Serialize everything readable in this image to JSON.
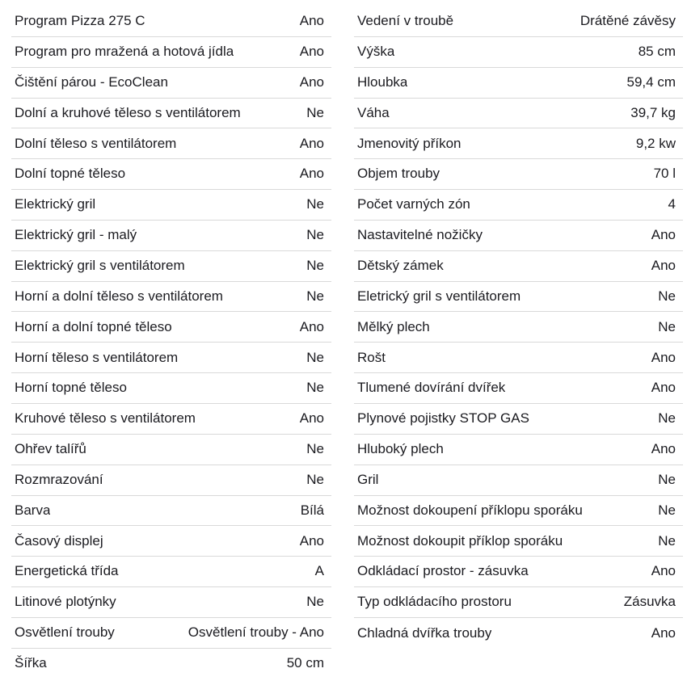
{
  "theme": {
    "text_color": "#1b1b20",
    "divider_color": "#d9d9d9",
    "background_color": "#ffffff"
  },
  "spec_table": {
    "left_column": [
      {
        "label": "Program Pizza 275 C",
        "value": "Ano"
      },
      {
        "label": "Program pro mražená a hotová jídla",
        "value": "Ano"
      },
      {
        "label": "Čištění párou - EcoClean",
        "value": "Ano"
      },
      {
        "label": "Dolní a kruhové těleso s ventilátorem",
        "value": "Ne"
      },
      {
        "label": "Dolní těleso s ventilátorem",
        "value": "Ano"
      },
      {
        "label": "Dolní topné těleso",
        "value": "Ano"
      },
      {
        "label": "Elektrický gril",
        "value": "Ne"
      },
      {
        "label": "Elektrický gril - malý",
        "value": "Ne"
      },
      {
        "label": "Elektrický gril s ventilátorem",
        "value": "Ne"
      },
      {
        "label": "Horní a dolní těleso s ventilátorem",
        "value": "Ne"
      },
      {
        "label": "Horní a dolní topné těleso",
        "value": "Ano"
      },
      {
        "label": "Horní těleso s ventilátorem",
        "value": "Ne"
      },
      {
        "label": "Horní topné těleso",
        "value": "Ne"
      },
      {
        "label": "Kruhové těleso s ventilátorem",
        "value": "Ano"
      },
      {
        "label": "Ohřev talířů",
        "value": "Ne"
      },
      {
        "label": "Rozmrazování",
        "value": "Ne"
      },
      {
        "label": "Barva",
        "value": "Bílá"
      },
      {
        "label": "Časový displej",
        "value": "Ano"
      },
      {
        "label": "Energetická třída",
        "value": "A"
      },
      {
        "label": "Litinové plotýnky",
        "value": "Ne"
      },
      {
        "label": "Osvětlení trouby",
        "value": "Osvětlení trouby - Ano"
      },
      {
        "label": "Šířka",
        "value": "50 cm"
      }
    ],
    "right_column": [
      {
        "label": "Vedení v troubě",
        "value": "Drátěné závěsy"
      },
      {
        "label": "Výška",
        "value": "85 cm"
      },
      {
        "label": "Hloubka",
        "value": "59,4 cm"
      },
      {
        "label": "Váha",
        "value": "39,7 kg"
      },
      {
        "label": "Jmenovitý příkon",
        "value": "9,2 kw"
      },
      {
        "label": "Objem trouby",
        "value": "70 l"
      },
      {
        "label": "Počet varných zón",
        "value": "4"
      },
      {
        "label": "Nastavitelné nožičky",
        "value": "Ano"
      },
      {
        "label": "Dětský zámek",
        "value": "Ano"
      },
      {
        "label": "Eletrický gril s ventilátorem",
        "value": "Ne"
      },
      {
        "label": "Mělký plech",
        "value": "Ne"
      },
      {
        "label": "Rošt",
        "value": "Ano"
      },
      {
        "label": "Tlumené dovírání dvířek",
        "value": "Ano"
      },
      {
        "label": "Plynové pojistky STOP GAS",
        "value": "Ne"
      },
      {
        "label": "Hluboký plech",
        "value": "Ano"
      },
      {
        "label": "Gril",
        "value": "Ne"
      },
      {
        "label": "Možnost dokoupení příklopu sporáku",
        "value": "Ne"
      },
      {
        "label": "Možnost dokoupit příklop sporáku",
        "value": "Ne"
      },
      {
        "label": "Odkládací prostor - zásuvka",
        "value": "Ano"
      },
      {
        "label": "Typ odkládacího prostoru",
        "value": "Zásuvka"
      },
      {
        "label": "Chladná dvířka trouby",
        "value": "Ano"
      }
    ]
  }
}
